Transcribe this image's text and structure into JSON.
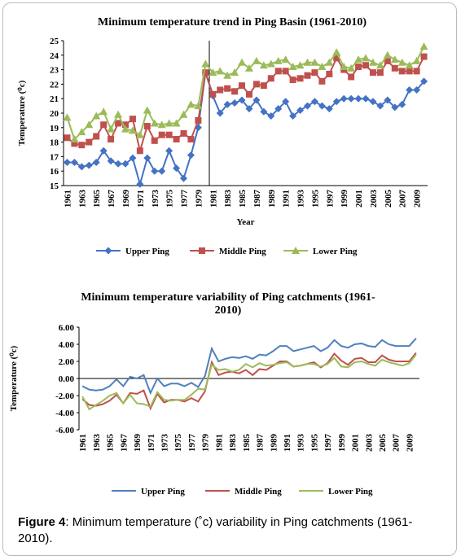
{
  "chart_data": [
    {
      "type": "line",
      "title": "Minimum temperature trend in Ping Basin (1961-2010)",
      "x_label": "Year",
      "y_label": "Temperature (⁰c)",
      "categories": [
        "1961",
        null,
        "1963",
        null,
        "1965",
        null,
        "1967",
        null,
        "1969",
        null,
        "1971",
        null,
        "1973",
        null,
        "1975",
        null,
        "1977",
        null,
        "1979",
        null,
        "1981",
        null,
        "1983",
        null,
        "1985",
        null,
        "1987",
        null,
        "1989",
        null,
        "1991",
        null,
        "1993",
        null,
        "1995",
        null,
        "1997",
        null,
        "1999",
        null,
        "2001",
        null,
        "2003",
        null,
        "2005",
        null,
        "2007",
        null,
        "2009",
        null
      ],
      "ylim": [
        15,
        25
      ],
      "yticks": [
        15,
        16,
        17,
        18,
        19,
        20,
        21,
        22,
        23,
        24,
        25
      ],
      "grid": false,
      "series": [
        {
          "name": "Upper Ping",
          "color": "#4472c4",
          "marker": "diamond",
          "values": [
            16.6,
            16.6,
            16.3,
            16.4,
            16.6,
            17.4,
            16.7,
            16.5,
            16.5,
            16.9,
            15.1,
            16.9,
            16.0,
            16.0,
            17.4,
            16.2,
            15.5,
            17.1,
            19.0,
            22.8,
            21.2,
            20.0,
            20.6,
            20.7,
            20.9,
            20.3,
            20.9,
            20.1,
            19.8,
            20.3,
            20.8,
            19.8,
            20.2,
            20.5,
            20.8,
            20.5,
            20.3,
            20.8,
            21.0,
            21.0,
            21.0,
            21.0,
            20.8,
            20.5,
            20.9,
            20.4,
            20.6,
            21.6,
            21.6,
            22.2
          ]
        },
        {
          "name": "Middle Ping",
          "color": "#c0504d",
          "marker": "square",
          "values": [
            18.3,
            17.9,
            17.8,
            18.0,
            18.4,
            19.2,
            18.2,
            19.3,
            19.2,
            19.6,
            17.4,
            19.1,
            18.1,
            18.5,
            18.5,
            18.2,
            18.6,
            18.2,
            19.5,
            22.8,
            21.3,
            21.6,
            21.7,
            21.5,
            21.9,
            21.3,
            22.0,
            21.9,
            22.4,
            22.9,
            22.9,
            22.3,
            22.4,
            22.6,
            22.8,
            22.2,
            22.7,
            23.8,
            23.0,
            22.5,
            23.2,
            23.3,
            22.8,
            22.8,
            23.6,
            23.1,
            22.9,
            22.9,
            22.9,
            23.9
          ]
        },
        {
          "name": "Lower Ping",
          "color": "#9bbb59",
          "marker": "triangle",
          "values": [
            19.7,
            18.2,
            18.7,
            19.2,
            19.8,
            20.1,
            18.9,
            19.9,
            18.9,
            18.8,
            18.5,
            20.2,
            19.3,
            19.2,
            19.3,
            19.3,
            19.9,
            20.6,
            20.5,
            23.4,
            22.8,
            22.9,
            22.6,
            22.8,
            23.5,
            23.1,
            23.6,
            23.3,
            23.4,
            23.6,
            23.7,
            23.2,
            23.3,
            23.5,
            23.5,
            23.2,
            23.5,
            24.2,
            23.2,
            23.1,
            23.7,
            23.8,
            23.5,
            23.3,
            24.0,
            23.7,
            23.5,
            23.3,
            23.6,
            24.6
          ]
        }
      ]
    },
    {
      "type": "line",
      "title": "Minimum temperature variability of Ping catchments (1961-2010)",
      "y_label": "Temperature (⁰c)",
      "categories": [
        "1961",
        null,
        "1963",
        null,
        "1965",
        null,
        "1967",
        null,
        "1969",
        null,
        "1971",
        null,
        "1973",
        null,
        "1975",
        null,
        "1977",
        null,
        "1979",
        null,
        "1981",
        null,
        "1983",
        null,
        "1985",
        null,
        "1987",
        null,
        "1989",
        null,
        "1991",
        null,
        "1993",
        null,
        "1995",
        null,
        "1997",
        null,
        "1999",
        null,
        "2001",
        null,
        "2003",
        null,
        "2005",
        null,
        "2007",
        null,
        "2009",
        null
      ],
      "ylim": [
        -6,
        6
      ],
      "yticks": [
        {
          "value": -6,
          "label": "-6.00"
        },
        {
          "value": -4,
          "label": "-4.00"
        },
        {
          "value": -2,
          "label": "-2.00"
        },
        {
          "value": 0,
          "label": "0.00"
        },
        {
          "value": 2,
          "label": "2.00"
        },
        {
          "value": 4,
          "label": "4.00"
        },
        {
          "value": 6,
          "label": "6.00"
        }
      ],
      "grid": false,
      "series": [
        {
          "name": "Upper Ping",
          "color": "#4f81bd",
          "values": [
            -0.9,
            -1.3,
            -1.4,
            -1.3,
            -0.9,
            -0.1,
            -0.9,
            0.2,
            0.0,
            0.4,
            -1.7,
            0.0,
            -0.9,
            -0.6,
            -0.6,
            -0.9,
            -0.5,
            -1.0,
            0.3,
            3.5,
            2.0,
            2.3,
            2.5,
            2.4,
            2.6,
            2.3,
            2.8,
            2.7,
            3.2,
            3.8,
            3.8,
            3.2,
            3.4,
            3.6,
            3.8,
            3.2,
            3.6,
            4.5,
            3.8,
            3.6,
            4.0,
            4.1,
            3.8,
            3.7,
            4.5,
            4.0,
            3.8,
            3.8,
            3.8,
            4.7
          ]
        },
        {
          "name": "Middle Ping",
          "color": "#c0504d",
          "values": [
            -2.4,
            -3.1,
            -3.2,
            -3.0,
            -2.6,
            -1.9,
            -2.9,
            -1.7,
            -1.8,
            -1.4,
            -3.5,
            -1.8,
            -2.8,
            -2.5,
            -2.5,
            -2.7,
            -2.3,
            -2.7,
            -1.5,
            1.9,
            0.4,
            0.7,
            0.8,
            0.6,
            1.0,
            0.4,
            1.1,
            1.0,
            1.5,
            2.0,
            2.0,
            1.4,
            1.5,
            1.7,
            1.9,
            1.3,
            1.8,
            2.9,
            2.1,
            1.6,
            2.3,
            2.4,
            1.9,
            1.9,
            2.7,
            2.2,
            2.0,
            2.0,
            2.0,
            3.0
          ]
        },
        {
          "name": "Lower Ping",
          "color": "#9bbb59",
          "values": [
            -2.1,
            -3.6,
            -3.1,
            -2.6,
            -2.0,
            -1.7,
            -2.9,
            -1.9,
            -2.9,
            -3.0,
            -3.3,
            -1.6,
            -2.5,
            -2.6,
            -2.5,
            -2.5,
            -1.9,
            -1.2,
            -1.3,
            1.6,
            1.0,
            1.1,
            0.8,
            1.0,
            1.7,
            1.3,
            1.8,
            1.5,
            1.6,
            1.8,
            1.9,
            1.4,
            1.5,
            1.7,
            1.7,
            1.4,
            1.7,
            2.4,
            1.4,
            1.3,
            1.9,
            2.0,
            1.7,
            1.5,
            2.2,
            1.9,
            1.7,
            1.5,
            1.8,
            2.8
          ]
        }
      ]
    }
  ],
  "caption": {
    "label": "Figure 4",
    "text": ": Minimum temperature (˚c) variability in Ping catchments (1961-2010)."
  }
}
